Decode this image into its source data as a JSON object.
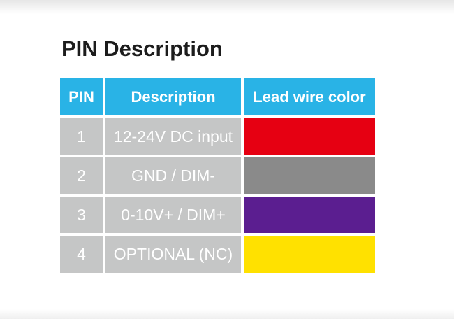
{
  "page": {
    "title": "PIN Description"
  },
  "theme": {
    "header_bg": "#29B3E6",
    "header_text": "#FFFFFF",
    "cell_bg": "#C5C6C6",
    "cell_text": "#FFFFFF",
    "gap_color": "#FFFFFF",
    "title_color": "#1C1C1C"
  },
  "table": {
    "headers": [
      {
        "label": "PIN"
      },
      {
        "label": "Description"
      },
      {
        "label": "Lead wire color"
      }
    ],
    "rows": [
      {
        "pin": "1",
        "description": "12-24V DC input",
        "lead_wire_color_name": "red",
        "lead_wire_color_hex": "#E60012"
      },
      {
        "pin": "2",
        "description": "GND / DIM-",
        "lead_wire_color_name": "gray",
        "lead_wire_color_hex": "#8A8A8A"
      },
      {
        "pin": "3",
        "description": "0-10V+ / DIM+",
        "lead_wire_color_name": "purple",
        "lead_wire_color_hex": "#5B1E90"
      },
      {
        "pin": "4",
        "description": "OPTIONAL (NC)",
        "lead_wire_color_name": "yellow",
        "lead_wire_color_hex": "#FFE100"
      }
    ]
  }
}
